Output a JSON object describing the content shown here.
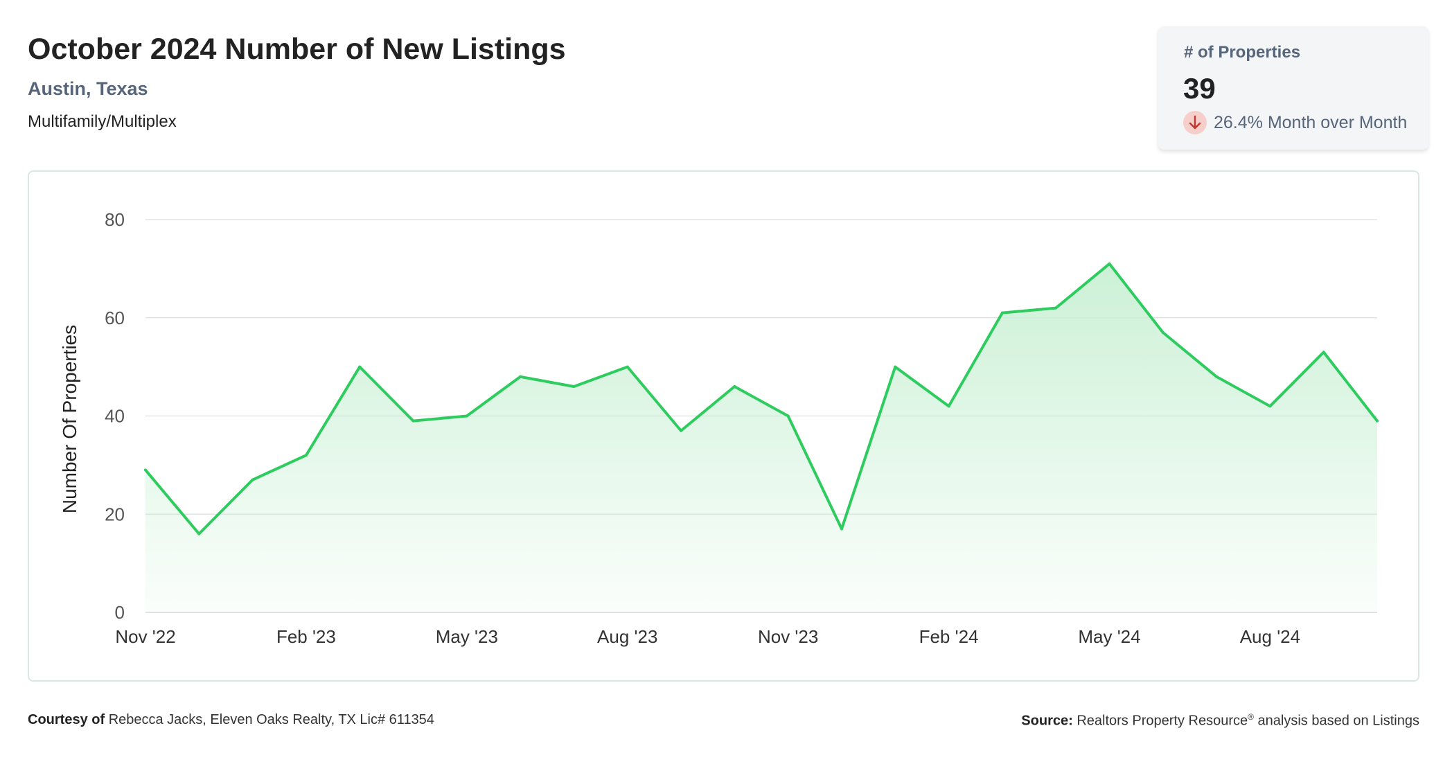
{
  "header": {
    "title": "October 2024 Number of New Listings",
    "location": "Austin, Texas",
    "property_type": "Multifamily/Multiplex"
  },
  "stat_card": {
    "label": "# of Properties",
    "value": "39",
    "change_text": "26.4% Month over Month",
    "direction": "down",
    "icon": "arrow-down-icon"
  },
  "colors": {
    "line": "#2ecc5f",
    "fill_top": "#c9f0d4",
    "grid": "#dddddd",
    "axis_text": "#555555",
    "down_badge_bg": "#f6cfcb",
    "down_arrow": "#c0392b"
  },
  "chart_data": {
    "type": "area",
    "title": "",
    "ylabel": "Number Of Properties",
    "xlabel": "",
    "ylim": [
      0,
      80
    ],
    "yticks": [
      0,
      20,
      40,
      60,
      80
    ],
    "grid": true,
    "x": [
      "Nov '22",
      "Dec '22",
      "Jan '23",
      "Feb '23",
      "Mar '23",
      "Apr '23",
      "May '23",
      "Jun '23",
      "Jul '23",
      "Aug '23",
      "Sep '23",
      "Oct '23",
      "Nov '23",
      "Dec '23",
      "Jan '24",
      "Feb '24",
      "Mar '24",
      "Apr '24",
      "May '24",
      "Jun '24",
      "Jul '24",
      "Aug '24",
      "Sep '24",
      "Oct '24"
    ],
    "xtick_labels": [
      "Nov '22",
      "Feb '23",
      "May '23",
      "Aug '23",
      "Nov '23",
      "Feb '24",
      "May '24",
      "Aug '24"
    ],
    "series": [
      {
        "values": [
          29,
          16,
          27,
          32,
          50,
          39,
          40,
          48,
          46,
          50,
          37,
          46,
          40,
          17,
          50,
          42,
          61,
          62,
          71,
          57,
          48,
          42,
          53,
          39
        ]
      }
    ]
  },
  "footer": {
    "courtesy_label": "Courtesy of",
    "courtesy_text": "Rebecca Jacks, Eleven Oaks Realty, TX Lic# 611354",
    "source_label": "Source:",
    "source_text_a": "Realtors Property Resource",
    "source_sup": "®",
    "source_text_b": "analysis based on Listings"
  }
}
